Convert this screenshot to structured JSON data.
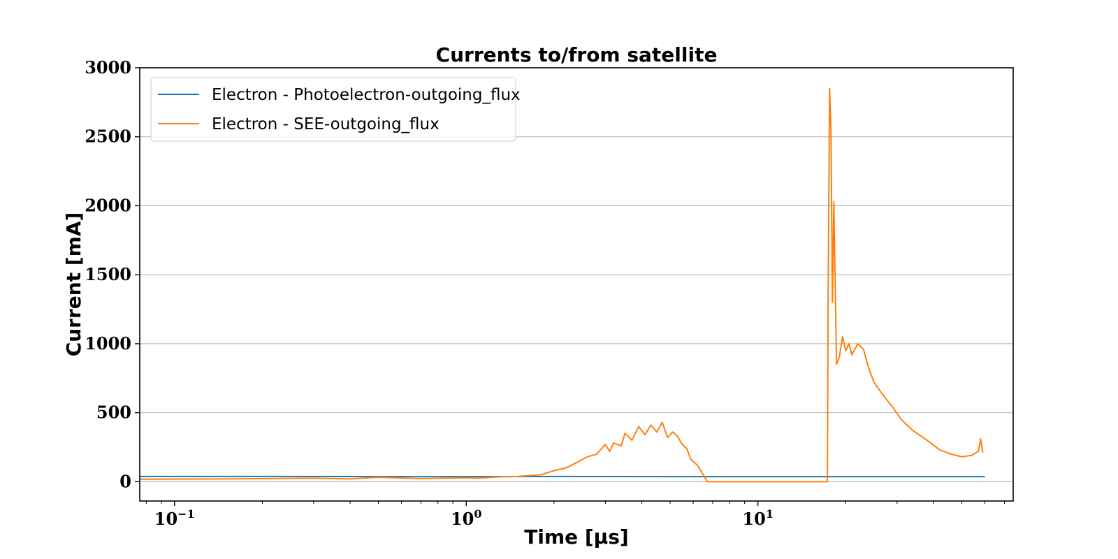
{
  "chart_data": {
    "type": "line",
    "title": "Currents to/from satellite",
    "xlabel": "Time [μs]",
    "ylabel": "Current [mA]",
    "xscale": "log",
    "xlim": [
      0.076,
      75
    ],
    "ylim": [
      -140,
      3000
    ],
    "yticks": [
      0,
      500,
      1000,
      1500,
      2000,
      2500,
      3000
    ],
    "xticks": [
      {
        "value": 0.1,
        "base": "10",
        "exp": "−1"
      },
      {
        "value": 1,
        "base": "10",
        "exp": "0"
      },
      {
        "value": 10,
        "base": "10",
        "exp": "1"
      }
    ],
    "grid": "horizontal",
    "legend_position": "upper-left",
    "series": [
      {
        "name": "Electron - Photoelectron-outgoing_flux",
        "color": "#1f77b4",
        "points": [
          [
            0.076,
            38
          ],
          [
            0.2,
            38
          ],
          [
            0.5,
            37
          ],
          [
            1,
            37
          ],
          [
            2,
            38
          ],
          [
            5,
            37
          ],
          [
            10,
            37
          ],
          [
            17,
            37
          ],
          [
            30,
            37
          ],
          [
            50,
            37
          ],
          [
            60,
            37
          ]
        ]
      },
      {
        "name": "Electron - SEE-outgoing_flux",
        "color": "#ff7f0e",
        "points": [
          [
            0.076,
            18
          ],
          [
            0.15,
            20
          ],
          [
            0.3,
            25
          ],
          [
            0.4,
            20
          ],
          [
            0.5,
            32
          ],
          [
            0.7,
            22
          ],
          [
            1.0,
            28
          ],
          [
            1.1,
            25
          ],
          [
            1.3,
            35
          ],
          [
            1.5,
            38
          ],
          [
            1.8,
            50
          ],
          [
            2.0,
            80
          ],
          [
            2.2,
            100
          ],
          [
            2.4,
            140
          ],
          [
            2.6,
            180
          ],
          [
            2.8,
            200
          ],
          [
            3.0,
            270
          ],
          [
            3.1,
            220
          ],
          [
            3.2,
            280
          ],
          [
            3.4,
            260
          ],
          [
            3.5,
            350
          ],
          [
            3.7,
            300
          ],
          [
            3.9,
            400
          ],
          [
            4.1,
            340
          ],
          [
            4.3,
            410
          ],
          [
            4.5,
            360
          ],
          [
            4.7,
            430
          ],
          [
            4.9,
            320
          ],
          [
            5.1,
            360
          ],
          [
            5.3,
            330
          ],
          [
            5.5,
            270
          ],
          [
            5.7,
            240
          ],
          [
            5.9,
            160
          ],
          [
            6.2,
            120
          ],
          [
            6.5,
            50
          ],
          [
            6.7,
            0
          ],
          [
            10,
            0
          ],
          [
            15,
            0
          ],
          [
            17.3,
            0
          ],
          [
            17.4,
            1250
          ],
          [
            17.6,
            2850
          ],
          [
            17.8,
            2550
          ],
          [
            18.0,
            1300
          ],
          [
            18.2,
            2030
          ],
          [
            18.6,
            850
          ],
          [
            19.0,
            900
          ],
          [
            19.5,
            1050
          ],
          [
            20.0,
            950
          ],
          [
            20.5,
            1000
          ],
          [
            21,
            920
          ],
          [
            22,
            1000
          ],
          [
            23,
            960
          ],
          [
            24,
            820
          ],
          [
            25,
            720
          ],
          [
            27,
            620
          ],
          [
            29,
            540
          ],
          [
            31,
            450
          ],
          [
            34,
            370
          ],
          [
            38,
            300
          ],
          [
            42,
            230
          ],
          [
            46,
            200
          ],
          [
            50,
            180
          ],
          [
            54,
            190
          ],
          [
            57,
            220
          ],
          [
            58,
            310
          ],
          [
            59,
            210
          ]
        ]
      }
    ]
  }
}
